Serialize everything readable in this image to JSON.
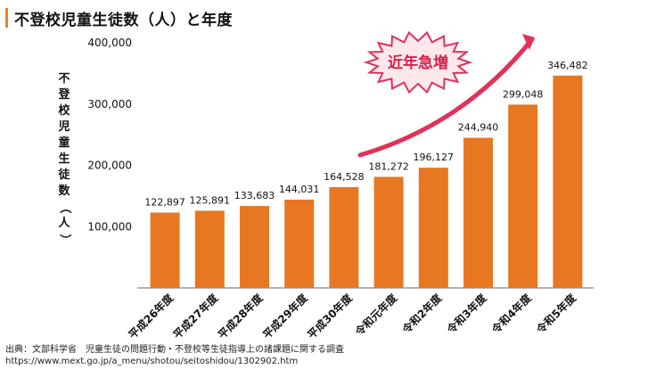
{
  "title": "不登校児童生徒数（人）と年度",
  "ylabel_chars": [
    "不",
    "登",
    "校",
    "児",
    "童",
    "生",
    "徒",
    "数",
    "（",
    "人",
    "）"
  ],
  "badge_text": "近年急増",
  "source_line1": "出典：文部科学省　児童生徒の問題行動・不登校等生徒指導上の諸課題に関する調査",
  "source_line2": "https://www.mext.go.jp/a_menu/shotou/seitoshidou/1302902.htm",
  "colors": {
    "bar": "#e87722",
    "arrow": "#e0325a",
    "accent": "#e8832a",
    "badge_fill": "#fde8ec",
    "badge_stroke": "#e0325a"
  },
  "chart_data": {
    "type": "bar",
    "title": "不登校児童生徒数（人）と年度",
    "ylabel": "不登校児童生徒数（人）",
    "xlabel": "",
    "ylim": [
      0,
      400000
    ],
    "yticks": [
      100000,
      200000,
      300000,
      400000
    ],
    "ytick_labels": [
      "100,000",
      "200,000",
      "300,000",
      "400,000"
    ],
    "categories": [
      "平成26年度",
      "平成27年度",
      "平成28年度",
      "平成29年度",
      "平成30年度",
      "令和元年度",
      "令和2年度",
      "令和3年度",
      "令和4年度",
      "令和5年度"
    ],
    "values": [
      122897,
      125891,
      133683,
      144031,
      164528,
      181272,
      196127,
      244940,
      299048,
      346482
    ],
    "value_labels": [
      "122,897",
      "125,891",
      "133,683",
      "144,031",
      "164,528",
      "181,272",
      "196,127",
      "244,940",
      "299,048",
      "346,482"
    ]
  }
}
